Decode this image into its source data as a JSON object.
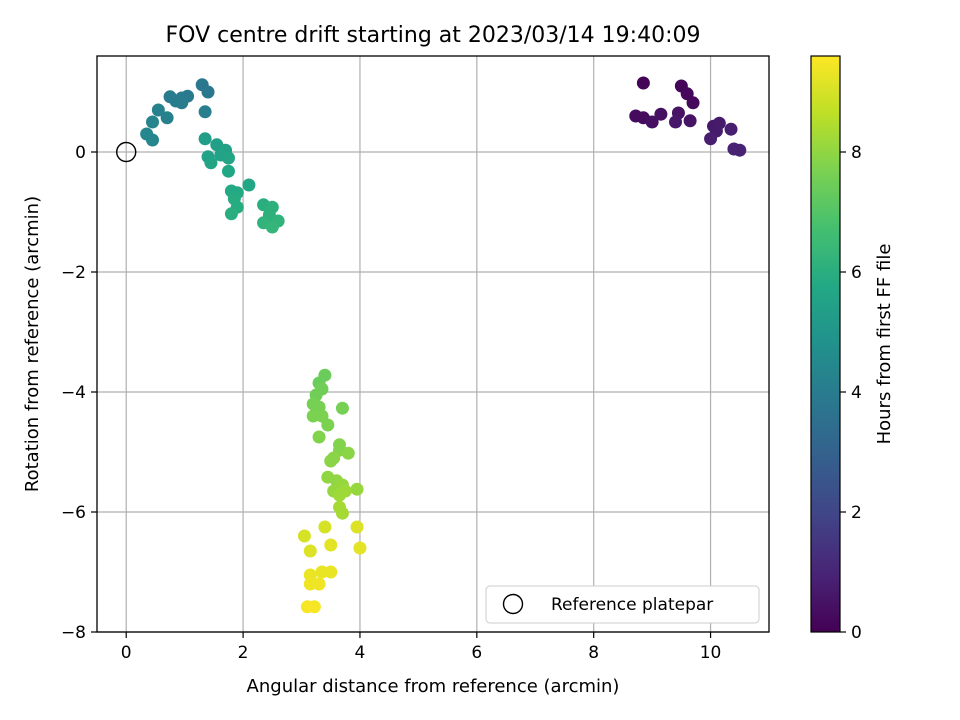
{
  "chart_data": {
    "type": "scatter",
    "title": "FOV centre drift starting at 2023/03/14 19:40:09",
    "xlabel": "Angular distance from reference (arcmin)",
    "ylabel": "Rotation from reference (arcmin)",
    "xlim": [
      -0.5,
      11.0
    ],
    "ylim": [
      -8.0,
      1.6
    ],
    "xticks": [
      0,
      2,
      4,
      6,
      8,
      10
    ],
    "yticks": [
      -8,
      -6,
      -4,
      -2,
      0
    ],
    "grid": true,
    "legend": {
      "placement": "lower-right",
      "entries": [
        "Reference platepar"
      ]
    },
    "colorbar": {
      "label": "Hours from first FF file",
      "colormap": "viridis",
      "range": [
        0,
        9.6
      ],
      "ticks": [
        0,
        2,
        4,
        6,
        8
      ]
    },
    "reference_point": {
      "x": 0.0,
      "y": 0.0
    },
    "points": [
      {
        "x": 8.85,
        "y": 1.15,
        "h": 0.1
      },
      {
        "x": 9.5,
        "y": 1.1,
        "h": 0.1
      },
      {
        "x": 9.6,
        "y": 0.97,
        "h": 0.2
      },
      {
        "x": 9.7,
        "y": 0.82,
        "h": 0.2
      },
      {
        "x": 8.72,
        "y": 0.6,
        "h": 0.3
      },
      {
        "x": 8.85,
        "y": 0.57,
        "h": 0.3
      },
      {
        "x": 9.0,
        "y": 0.5,
        "h": 0.4
      },
      {
        "x": 9.15,
        "y": 0.63,
        "h": 0.4
      },
      {
        "x": 9.45,
        "y": 0.65,
        "h": 0.5
      },
      {
        "x": 9.65,
        "y": 0.52,
        "h": 0.5
      },
      {
        "x": 9.4,
        "y": 0.5,
        "h": 0.6
      },
      {
        "x": 10.05,
        "y": 0.43,
        "h": 0.6
      },
      {
        "x": 10.15,
        "y": 0.48,
        "h": 0.7
      },
      {
        "x": 10.1,
        "y": 0.35,
        "h": 0.7
      },
      {
        "x": 10.35,
        "y": 0.38,
        "h": 0.8
      },
      {
        "x": 10.0,
        "y": 0.22,
        "h": 0.8
      },
      {
        "x": 10.4,
        "y": 0.05,
        "h": 0.9
      },
      {
        "x": 10.5,
        "y": 0.03,
        "h": 0.9
      },
      {
        "x": 1.3,
        "y": 1.12,
        "h": 3.8
      },
      {
        "x": 1.4,
        "y": 1.0,
        "h": 3.8
      },
      {
        "x": 1.05,
        "y": 0.93,
        "h": 3.9
      },
      {
        "x": 0.95,
        "y": 0.9,
        "h": 3.9
      },
      {
        "x": 0.85,
        "y": 0.85,
        "h": 4.0
      },
      {
        "x": 0.75,
        "y": 0.92,
        "h": 4.0
      },
      {
        "x": 0.95,
        "y": 0.82,
        "h": 4.0
      },
      {
        "x": 1.35,
        "y": 0.67,
        "h": 4.1
      },
      {
        "x": 0.55,
        "y": 0.7,
        "h": 4.2
      },
      {
        "x": 0.7,
        "y": 0.57,
        "h": 4.2
      },
      {
        "x": 0.45,
        "y": 0.5,
        "h": 4.3
      },
      {
        "x": 0.35,
        "y": 0.3,
        "h": 4.4
      },
      {
        "x": 0.45,
        "y": 0.2,
        "h": 4.4
      },
      {
        "x": 1.35,
        "y": 0.22,
        "h": 5.3
      },
      {
        "x": 1.55,
        "y": 0.12,
        "h": 5.4
      },
      {
        "x": 1.7,
        "y": 0.03,
        "h": 5.4
      },
      {
        "x": 1.62,
        "y": -0.05,
        "h": 5.5
      },
      {
        "x": 1.4,
        "y": -0.08,
        "h": 5.5
      },
      {
        "x": 1.45,
        "y": -0.18,
        "h": 5.6
      },
      {
        "x": 1.75,
        "y": -0.1,
        "h": 5.6
      },
      {
        "x": 1.75,
        "y": -0.32,
        "h": 5.7
      },
      {
        "x": 2.1,
        "y": -0.55,
        "h": 5.7
      },
      {
        "x": 1.8,
        "y": -0.65,
        "h": 5.8
      },
      {
        "x": 1.9,
        "y": -0.68,
        "h": 5.8
      },
      {
        "x": 1.85,
        "y": -0.78,
        "h": 5.9
      },
      {
        "x": 1.9,
        "y": -0.92,
        "h": 5.9
      },
      {
        "x": 1.8,
        "y": -1.03,
        "h": 6.0
      },
      {
        "x": 2.35,
        "y": -0.88,
        "h": 6.0
      },
      {
        "x": 2.5,
        "y": -0.92,
        "h": 6.1
      },
      {
        "x": 2.45,
        "y": -1.05,
        "h": 6.1
      },
      {
        "x": 2.35,
        "y": -1.18,
        "h": 6.2
      },
      {
        "x": 2.6,
        "y": -1.15,
        "h": 6.2
      },
      {
        "x": 2.5,
        "y": -1.25,
        "h": 6.3
      },
      {
        "x": 3.4,
        "y": -3.72,
        "h": 7.4
      },
      {
        "x": 3.3,
        "y": -3.85,
        "h": 7.4
      },
      {
        "x": 3.35,
        "y": -3.95,
        "h": 7.5
      },
      {
        "x": 3.25,
        "y": -4.05,
        "h": 7.5
      },
      {
        "x": 3.2,
        "y": -4.2,
        "h": 7.6
      },
      {
        "x": 3.3,
        "y": -4.25,
        "h": 7.6
      },
      {
        "x": 3.7,
        "y": -4.27,
        "h": 7.6
      },
      {
        "x": 3.2,
        "y": -4.4,
        "h": 7.7
      },
      {
        "x": 3.35,
        "y": -4.4,
        "h": 7.7
      },
      {
        "x": 3.45,
        "y": -4.55,
        "h": 7.7
      },
      {
        "x": 3.3,
        "y": -4.75,
        "h": 7.8
      },
      {
        "x": 3.65,
        "y": -4.88,
        "h": 7.8
      },
      {
        "x": 3.65,
        "y": -4.97,
        "h": 7.8
      },
      {
        "x": 3.8,
        "y": -5.02,
        "h": 7.9
      },
      {
        "x": 3.55,
        "y": -5.1,
        "h": 7.9
      },
      {
        "x": 3.5,
        "y": -5.15,
        "h": 7.9
      },
      {
        "x": 3.45,
        "y": -5.42,
        "h": 8.0
      },
      {
        "x": 3.6,
        "y": -5.48,
        "h": 8.0
      },
      {
        "x": 3.7,
        "y": -5.55,
        "h": 8.1
      },
      {
        "x": 3.95,
        "y": -5.62,
        "h": 8.1
      },
      {
        "x": 3.55,
        "y": -5.65,
        "h": 8.1
      },
      {
        "x": 3.75,
        "y": -5.65,
        "h": 8.2
      },
      {
        "x": 3.65,
        "y": -5.72,
        "h": 8.2
      },
      {
        "x": 3.65,
        "y": -5.92,
        "h": 8.3
      },
      {
        "x": 3.7,
        "y": -6.02,
        "h": 8.3
      },
      {
        "x": 3.05,
        "y": -6.4,
        "h": 9.0
      },
      {
        "x": 3.4,
        "y": -6.25,
        "h": 9.0
      },
      {
        "x": 3.95,
        "y": -6.25,
        "h": 9.1
      },
      {
        "x": 3.15,
        "y": -6.65,
        "h": 9.1
      },
      {
        "x": 3.5,
        "y": -6.55,
        "h": 9.2
      },
      {
        "x": 4.0,
        "y": -6.6,
        "h": 9.2
      },
      {
        "x": 3.35,
        "y": -7.0,
        "h": 9.3
      },
      {
        "x": 3.5,
        "y": -7.0,
        "h": 9.3
      },
      {
        "x": 3.15,
        "y": -7.05,
        "h": 9.3
      },
      {
        "x": 3.15,
        "y": -7.2,
        "h": 9.4
      },
      {
        "x": 3.3,
        "y": -7.2,
        "h": 9.4
      },
      {
        "x": 3.1,
        "y": -7.58,
        "h": 9.5
      },
      {
        "x": 3.22,
        "y": -7.58,
        "h": 9.5
      }
    ]
  }
}
